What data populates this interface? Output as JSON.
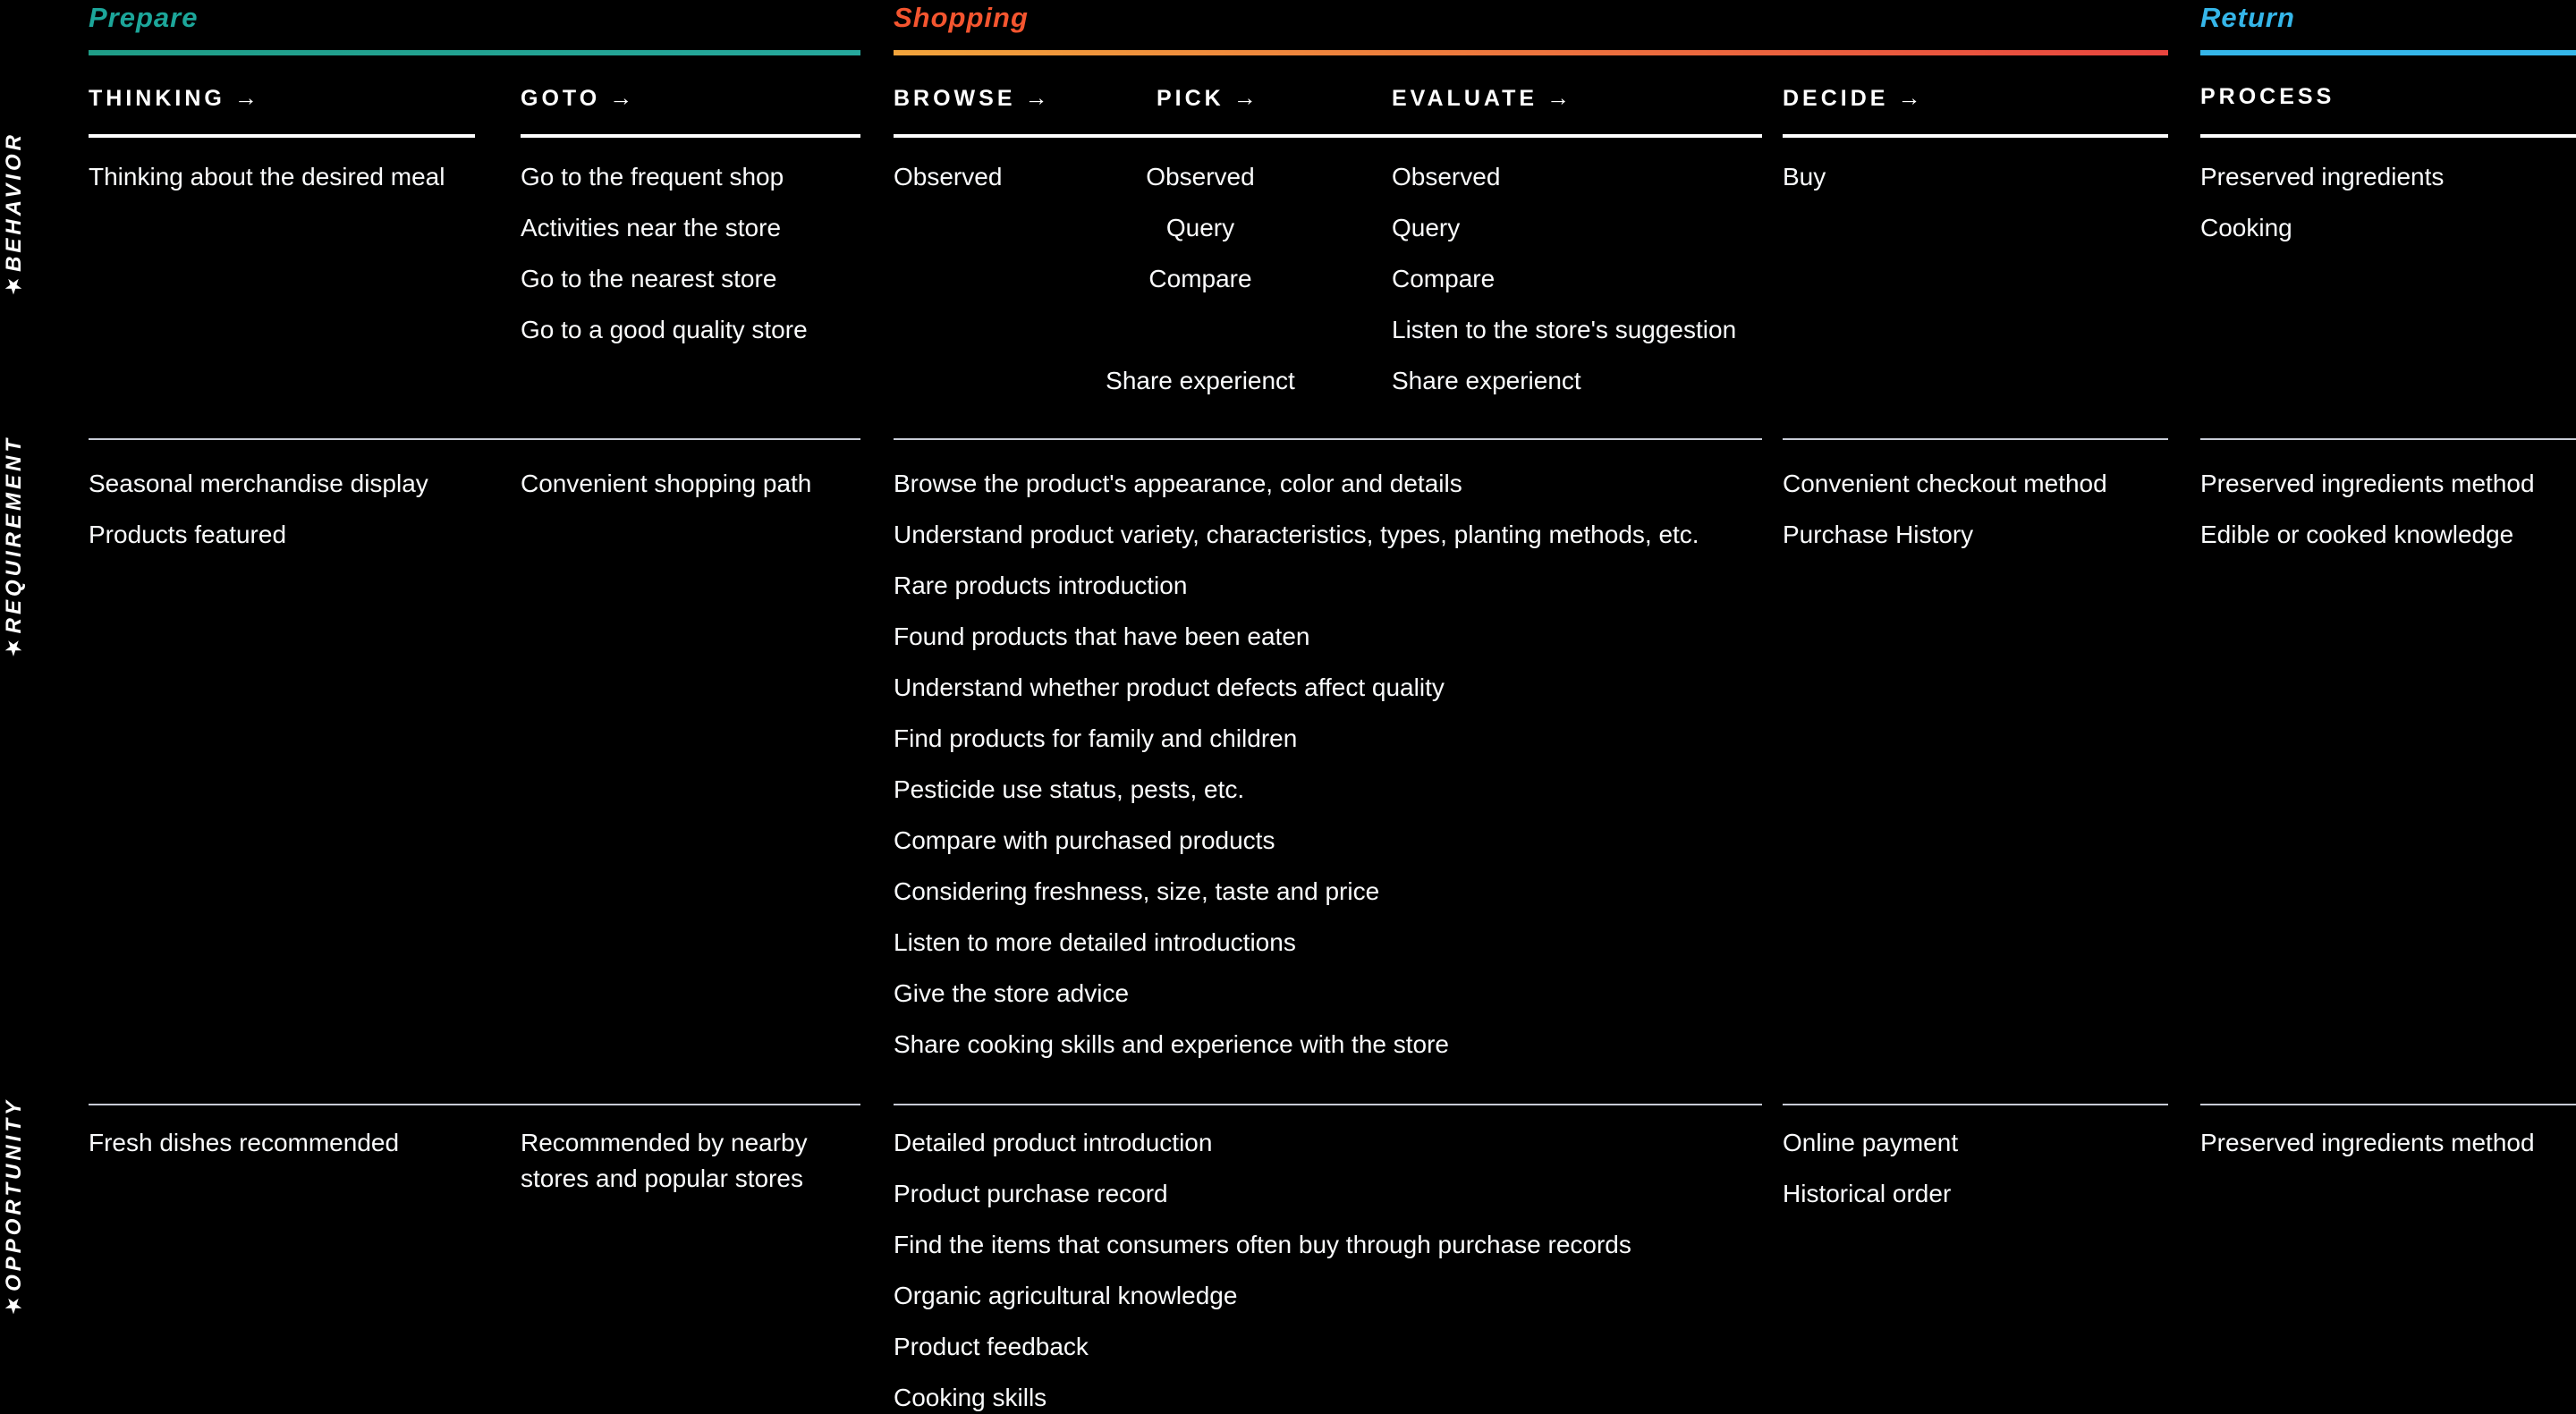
{
  "side_labels": {
    "behavior": {
      "star": "★",
      "text": "BEHAVIOR"
    },
    "requirement": {
      "star": "★",
      "text": "REQUIREMENT"
    },
    "opportunity": {
      "star": "★",
      "text": "OPPORTUNITY"
    }
  },
  "phases": {
    "prepare": {
      "title": "Prepare",
      "title_color": "#1CA69A",
      "line_colors": [
        "#1F9D87",
        "#26A89D"
      ]
    },
    "shopping": {
      "title": "Shopping",
      "title_color": "#F4552F",
      "line_colors": [
        "#F2A43C",
        "#E8453F"
      ]
    },
    "return": {
      "title": "Return",
      "title_color": "#35B6E9",
      "line_colors": [
        "#35B6E9",
        "#35B6E9"
      ]
    }
  },
  "columns": {
    "thinking": {
      "header": "THINKING",
      "arrow": "→"
    },
    "goto": {
      "header": "GOTO",
      "arrow": "→"
    },
    "browse": {
      "header": "BROWSE",
      "arrow": "→"
    },
    "pick": {
      "header": "PICK",
      "arrow": "→"
    },
    "evaluate": {
      "header": "EVALUATE",
      "arrow": "→"
    },
    "decide": {
      "header": "DECIDE",
      "arrow": "→"
    },
    "process": {
      "header": "PROCESS",
      "arrow": ""
    }
  },
  "rows": {
    "behavior": {
      "thinking": [
        "Thinking about the desired meal"
      ],
      "goto": [
        "Go to the frequent shop",
        "Activities near the store",
        "Go to the nearest store",
        "Go to a good quality store"
      ],
      "browse": [
        "Observed"
      ],
      "pick": [
        "Observed",
        "Query",
        "Compare",
        "",
        "Share experienct"
      ],
      "evaluate": [
        "Observed",
        "Query",
        "Compare",
        "Listen to the store's suggestion",
        "Share experienct"
      ],
      "decide": [
        "Buy"
      ],
      "process": [
        "Preserved ingredients",
        "Cooking"
      ]
    },
    "requirement": {
      "thinking": [
        "Seasonal merchandise display",
        "Products featured"
      ],
      "goto": [
        "Convenient shopping path"
      ],
      "shopping": [
        "Browse the product's appearance, color and details",
        "Understand product variety, characteristics, types, planting methods, etc.",
        "Rare products introduction",
        "Found products that have been eaten",
        "Understand whether product defects affect quality",
        "Find products for family and children",
        "Pesticide use status, pests, etc.",
        "Compare with purchased products",
        "Considering freshness, size, taste and price",
        "Listen to more detailed introductions",
        "Give the store advice",
        "Share cooking skills and experience with the store"
      ],
      "decide": [
        "Convenient checkout method",
        "Purchase History"
      ],
      "process": [
        "Preserved ingredients method",
        "Edible or cooked knowledge"
      ]
    },
    "opportunity": {
      "thinking": [
        "Fresh dishes recommended"
      ],
      "goto": [
        "Recommended by nearby stores and popular stores"
      ],
      "shopping": [
        "Detailed product introduction",
        "Product purchase record",
        "Find the items that consumers often buy through purchase records",
        "Organic agricultural knowledge",
        "Product feedback",
        "Cooking skills"
      ],
      "decide": [
        "Online payment",
        "Historical order"
      ],
      "process": [
        "Preserved ingredients method"
      ]
    }
  },
  "colors": {
    "background": "#000000",
    "text": "#FAFBFC",
    "separator": "#C7CBD6",
    "header_underline": "#FFFFFF"
  }
}
